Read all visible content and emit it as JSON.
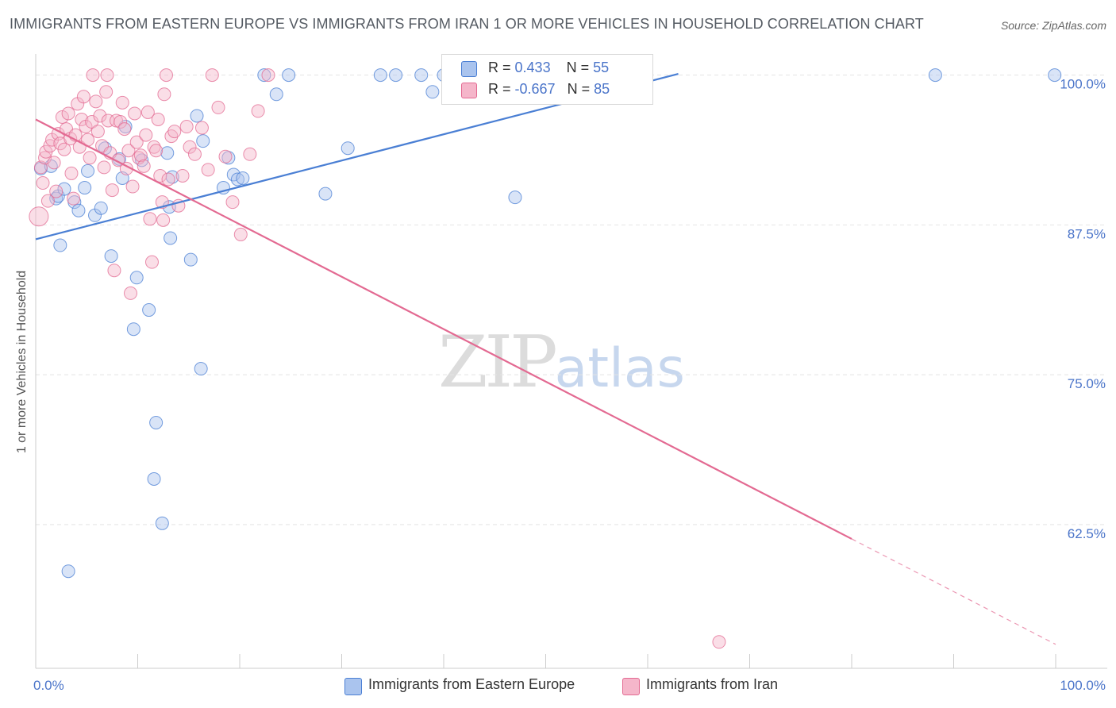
{
  "title": "IMMIGRANTS FROM EASTERN EUROPE VS IMMIGRANTS FROM IRAN 1 OR MORE VEHICLES IN HOUSEHOLD CORRELATION CHART",
  "source": "Source: ZipAtlas.com",
  "watermark": {
    "zip": "ZIP",
    "atlas": "atlas"
  },
  "legend_top": [
    {
      "r_label": "R =",
      "r_value": "0.433",
      "n_label": "N =",
      "n_value": "55"
    },
    {
      "r_label": "R =",
      "r_value": "-0.667",
      "n_label": "N =",
      "n_value": "85"
    }
  ],
  "colors": {
    "blue": "#4a7fd4",
    "blue_fill": "#aac4ee",
    "pink": "#e36a92",
    "pink_fill": "#f5b6ca",
    "tick_text": "#4a74c9"
  },
  "chart_data": {
    "type": "scatter",
    "title": "IMMIGRANTS FROM EASTERN EUROPE VS IMMIGRANTS FROM IRAN 1 OR MORE VEHICLES IN HOUSEHOLD CORRELATION CHART",
    "xlabel": "",
    "ylabel": "1 or more Vehicles in Household",
    "xlim": [
      0,
      100
    ],
    "ylim": [
      50.5,
      101.3
    ],
    "x_tick_labels": [
      "0.0%",
      "100.0%"
    ],
    "y_ticks": [
      100.0,
      87.5,
      75.0,
      62.5
    ],
    "y_tick_labels": [
      "100.0%",
      "87.5%",
      "75.0%",
      "62.5%"
    ],
    "grid": true,
    "legend_position": "bottom",
    "series": [
      {
        "name": "Immigrants from Eastern Europe",
        "color": "#4a7fd4",
        "r": 0.433,
        "n": 55,
        "trend": [
          [
            0,
            86.3
          ],
          [
            63,
            100.1
          ]
        ],
        "points": [
          [
            0.5,
            92.2
          ],
          [
            1.5,
            92.4
          ],
          [
            2,
            89.7
          ],
          [
            2.2,
            89.9
          ],
          [
            2.4,
            85.8
          ],
          [
            2.8,
            90.5
          ],
          [
            3.2,
            58.6
          ],
          [
            3.8,
            89.4
          ],
          [
            4.2,
            88.7
          ],
          [
            4.8,
            90.6
          ],
          [
            5.1,
            92.0
          ],
          [
            5.8,
            88.3
          ],
          [
            6.4,
            88.9
          ],
          [
            6.8,
            93.9
          ],
          [
            7.4,
            84.9
          ],
          [
            8.2,
            93.0
          ],
          [
            8.5,
            91.4
          ],
          [
            8.8,
            95.7
          ],
          [
            9.6,
            78.8
          ],
          [
            9.9,
            83.1
          ],
          [
            10.4,
            92.9
          ],
          [
            11.1,
            80.4
          ],
          [
            11.8,
            71.0
          ],
          [
            11.6,
            66.3
          ],
          [
            12.4,
            62.6
          ],
          [
            12.9,
            93.5
          ],
          [
            13.1,
            89.0
          ],
          [
            13.4,
            91.5
          ],
          [
            13.2,
            86.4
          ],
          [
            15.2,
            84.6
          ],
          [
            15.8,
            96.6
          ],
          [
            16.4,
            94.5
          ],
          [
            16.2,
            75.5
          ],
          [
            18.4,
            90.6
          ],
          [
            18.9,
            93.1
          ],
          [
            19.4,
            91.7
          ],
          [
            19.8,
            91.3
          ],
          [
            20.3,
            91.4
          ],
          [
            22.4,
            100.0
          ],
          [
            23.6,
            98.4
          ],
          [
            24.8,
            100.0
          ],
          [
            28.4,
            90.1
          ],
          [
            30.6,
            93.9
          ],
          [
            33.8,
            100.0
          ],
          [
            35.3,
            100.0
          ],
          [
            37.8,
            100.0
          ],
          [
            38.9,
            98.6
          ],
          [
            40.0,
            100.0
          ],
          [
            41.2,
            100.0
          ],
          [
            41.9,
            100.0
          ],
          [
            43.3,
            100.0
          ],
          [
            45.5,
            100.0
          ],
          [
            47.0,
            89.8
          ],
          [
            88.2,
            100.0
          ],
          [
            99.9,
            100.0
          ]
        ]
      },
      {
        "name": "Immigrants from Iran",
        "color": "#e36a92",
        "r": -0.667,
        "n": 85,
        "trend": [
          [
            0,
            96.3
          ],
          [
            80,
            61.3
          ]
        ],
        "trend_dashed": [
          [
            80,
            61.3
          ],
          [
            100,
            52.5
          ]
        ],
        "points": [
          [
            0.3,
            88.2
          ],
          [
            0.5,
            92.3
          ],
          [
            0.7,
            91.0
          ],
          [
            0.9,
            93.1
          ],
          [
            1.0,
            93.6
          ],
          [
            1.2,
            89.5
          ],
          [
            1.4,
            94.1
          ],
          [
            1.6,
            94.6
          ],
          [
            1.8,
            92.7
          ],
          [
            2.0,
            90.3
          ],
          [
            2.2,
            95.1
          ],
          [
            2.4,
            94.3
          ],
          [
            2.6,
            96.5
          ],
          [
            2.8,
            93.8
          ],
          [
            3.0,
            95.5
          ],
          [
            3.2,
            96.8
          ],
          [
            3.4,
            94.7
          ],
          [
            3.5,
            91.8
          ],
          [
            3.7,
            89.7
          ],
          [
            3.9,
            95.0
          ],
          [
            4.1,
            97.6
          ],
          [
            4.3,
            94.0
          ],
          [
            4.5,
            96.3
          ],
          [
            4.7,
            98.2
          ],
          [
            4.9,
            95.7
          ],
          [
            5.1,
            94.6
          ],
          [
            5.3,
            93.1
          ],
          [
            5.5,
            96.1
          ],
          [
            5.6,
            100.0
          ],
          [
            5.9,
            97.8
          ],
          [
            6.1,
            95.3
          ],
          [
            6.3,
            96.6
          ],
          [
            6.5,
            94.1
          ],
          [
            6.7,
            92.3
          ],
          [
            6.9,
            98.6
          ],
          [
            7.1,
            96.2
          ],
          [
            7.3,
            93.5
          ],
          [
            7.5,
            90.4
          ],
          [
            7.7,
            83.7
          ],
          [
            7.9,
            96.2
          ],
          [
            8.1,
            92.9
          ],
          [
            8.3,
            96.1
          ],
          [
            8.5,
            97.7
          ],
          [
            8.7,
            95.5
          ],
          [
            8.9,
            92.2
          ],
          [
            9.1,
            93.7
          ],
          [
            9.3,
            81.8
          ],
          [
            9.5,
            90.7
          ],
          [
            9.7,
            96.8
          ],
          [
            9.9,
            94.4
          ],
          [
            10.1,
            93.1
          ],
          [
            10.3,
            93.3
          ],
          [
            10.6,
            92.4
          ],
          [
            10.8,
            95.0
          ],
          [
            11.0,
            96.9
          ],
          [
            11.2,
            88.0
          ],
          [
            11.4,
            84.4
          ],
          [
            11.6,
            94.0
          ],
          [
            11.8,
            93.7
          ],
          [
            12.0,
            96.3
          ],
          [
            12.2,
            91.6
          ],
          [
            12.4,
            89.4
          ],
          [
            12.6,
            98.4
          ],
          [
            12.8,
            100.0
          ],
          [
            13.0,
            91.3
          ],
          [
            13.3,
            94.9
          ],
          [
            13.6,
            95.3
          ],
          [
            14.0,
            89.1
          ],
          [
            14.4,
            91.6
          ],
          [
            14.8,
            95.7
          ],
          [
            15.1,
            94.0
          ],
          [
            15.6,
            93.4
          ],
          [
            16.3,
            95.6
          ],
          [
            16.9,
            92.1
          ],
          [
            17.3,
            100.0
          ],
          [
            17.9,
            97.3
          ],
          [
            18.6,
            93.2
          ],
          [
            19.3,
            89.4
          ],
          [
            20.1,
            86.7
          ],
          [
            21.0,
            93.4
          ],
          [
            21.8,
            97.0
          ],
          [
            22.8,
            100.0
          ],
          [
            12.5,
            87.9
          ],
          [
            7.0,
            100.0
          ],
          [
            67.0,
            52.7
          ]
        ]
      }
    ]
  },
  "legend_bottom": [
    {
      "label": "Immigrants from Eastern Europe"
    },
    {
      "label": "Immigrants from Iran"
    }
  ]
}
